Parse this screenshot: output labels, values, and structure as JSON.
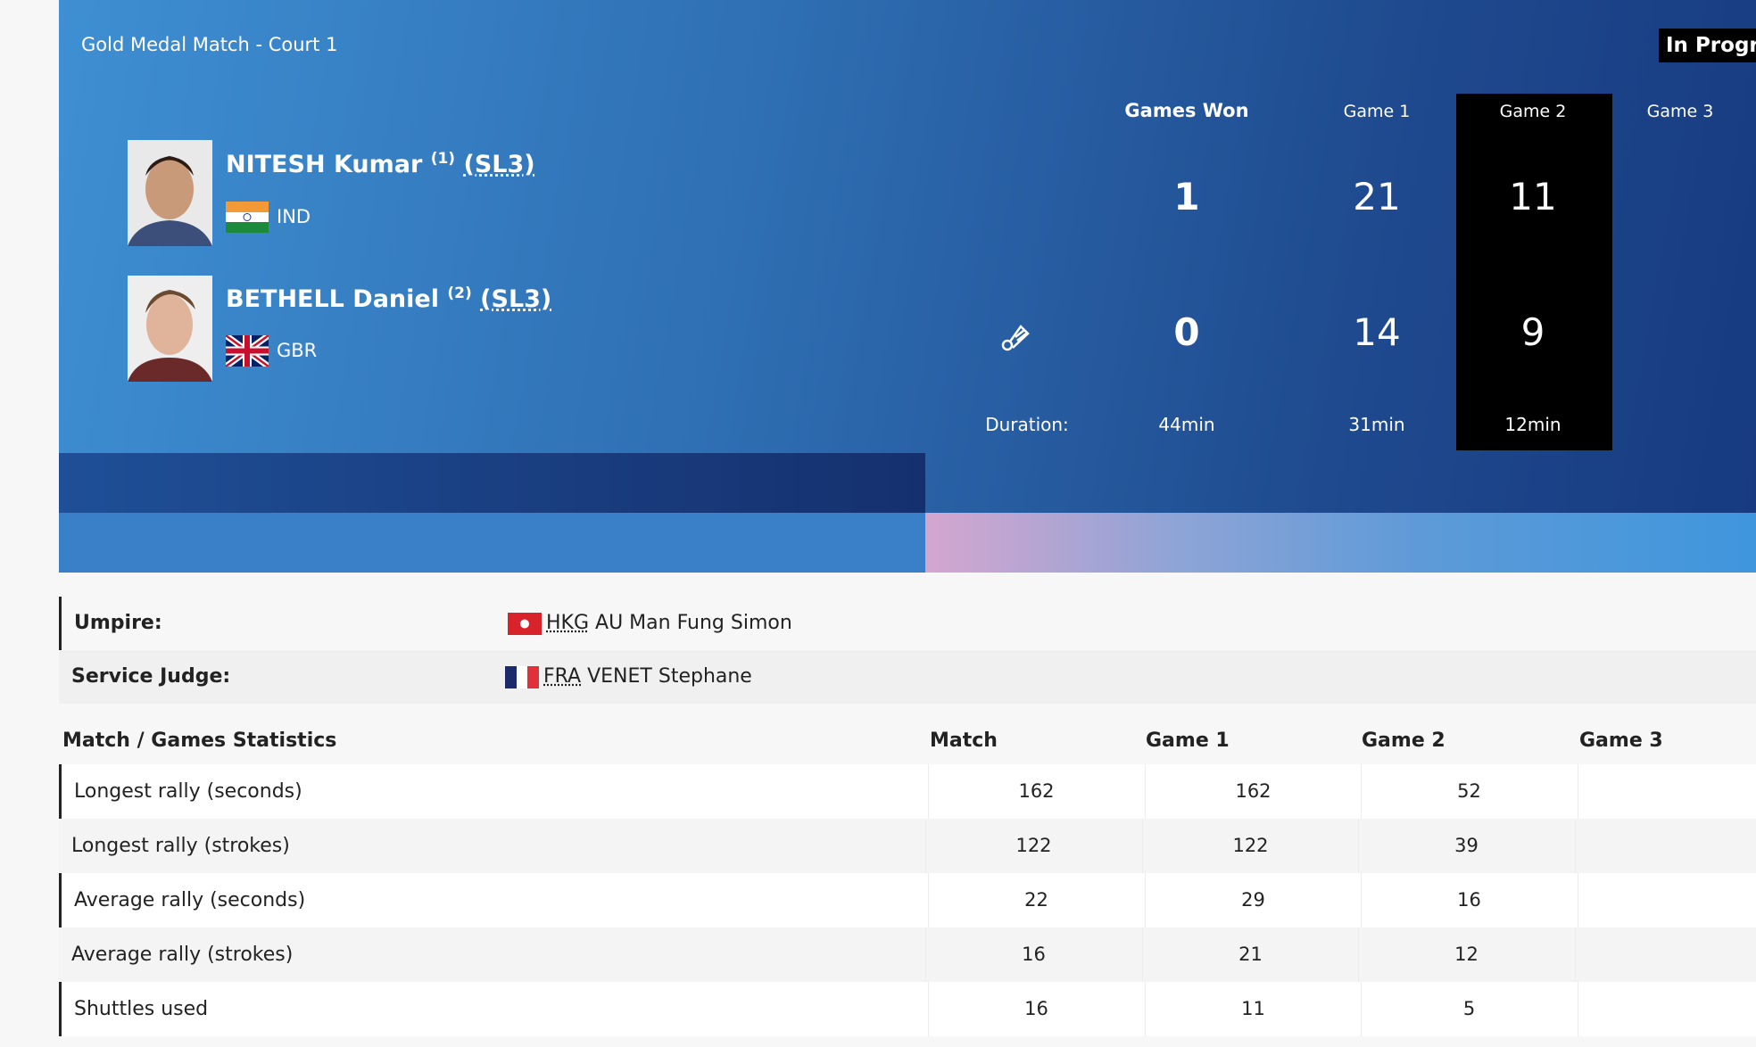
{
  "header": {
    "match": "Gold Medal Match - Court 1",
    "status": "In Progress"
  },
  "scoreboard": {
    "columns": [
      "Games Won",
      "Game 1",
      "Game 2",
      "Game 3"
    ],
    "players": [
      {
        "name": "NITESH Kumar",
        "seed": "(1)",
        "class": "(SL3)",
        "country": "IND",
        "games_won": 1,
        "scores": [
          21,
          11
        ]
      },
      {
        "name": "BETHELL Daniel",
        "seed": "(2)",
        "class": "(SL3)",
        "country": "GBR",
        "games_won": 0,
        "scores": [
          14,
          9
        ]
      }
    ],
    "duration_label": "Duration:",
    "durations": [
      "44min",
      "31min",
      "12min"
    ]
  },
  "officials": [
    {
      "role": "Umpire:",
      "country": "HKG",
      "name": "AU Man Fung Simon"
    },
    {
      "role": "Service Judge:",
      "country": "FRA",
      "name": "VENET Stephane"
    }
  ],
  "statistics": {
    "header": [
      "Match / Games Statistics",
      "Match",
      "Game 1",
      "Game 2",
      "Game 3"
    ],
    "rows": [
      {
        "label": "Longest rally (seconds)",
        "values": [
          162,
          162,
          52
        ]
      },
      {
        "label": "Longest rally (strokes)",
        "values": [
          122,
          122,
          39
        ]
      },
      {
        "label": "Average rally (seconds)",
        "values": [
          22,
          29,
          16
        ]
      },
      {
        "label": "Average rally (strokes)",
        "values": [
          16,
          21,
          12
        ]
      },
      {
        "label": "Shuttles used",
        "values": [
          16,
          11,
          5
        ]
      }
    ]
  }
}
